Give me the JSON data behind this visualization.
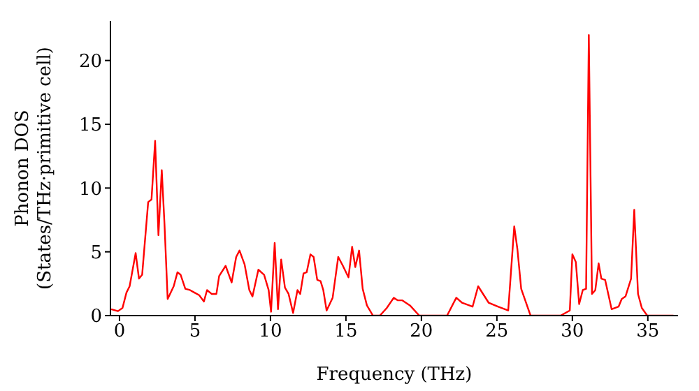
{
  "chart_data": {
    "type": "line",
    "xlabel": "Frequency (THz)",
    "ylabel": "Phonon DOS\n(States/THz·primitive cell)",
    "x": [
      -0.55,
      -0.1,
      0.2,
      0.46,
      0.67,
      1.07,
      1.29,
      1.5,
      1.9,
      2.12,
      2.36,
      2.58,
      2.8,
      2.98,
      3.19,
      3.59,
      3.84,
      4.05,
      4.36,
      4.67,
      4.97,
      5.28,
      5.59,
      5.8,
      6.1,
      6.42,
      6.6,
      7.03,
      7.43,
      7.73,
      7.95,
      8.29,
      8.6,
      8.81,
      9.2,
      9.58,
      9.88,
      10.04,
      10.28,
      10.5,
      10.71,
      10.96,
      11.2,
      11.5,
      11.79,
      11.97,
      12.19,
      12.4,
      12.65,
      12.86,
      13.1,
      13.32,
      13.5,
      13.72,
      14.12,
      14.49,
      14.8,
      15.17,
      15.41,
      15.62,
      15.87,
      16.11,
      16.39,
      16.79,
      17.25,
      17.71,
      18.17,
      18.42,
      18.72,
      19.24,
      19.86,
      21.7,
      22.31,
      22.7,
      23.39,
      23.76,
      24.46,
      25.07,
      25.75,
      26.15,
      26.36,
      26.61,
      27.23,
      29.22,
      29.83,
      30.0,
      30.23,
      30.45,
      30.69,
      30.91,
      31.09,
      31.3,
      31.52,
      31.74,
      31.92,
      32.17,
      32.6,
      33.06,
      33.27,
      33.52,
      33.89,
      34.1,
      34.35,
      34.6,
      34.96,
      36.7
    ],
    "series": [
      {
        "color": "#ff0000",
        "values": [
          0.5,
          0.35,
          0.6,
          1.8,
          2.3,
          4.9,
          2.9,
          3.2,
          8.9,
          9.1,
          13.7,
          6.3,
          11.4,
          7.2,
          1.3,
          2.3,
          3.4,
          3.2,
          2.1,
          2.0,
          1.8,
          1.6,
          1.1,
          2.0,
          1.7,
          1.7,
          3.1,
          3.9,
          2.6,
          4.6,
          5.1,
          4.0,
          2.0,
          1.5,
          3.6,
          3.2,
          2.0,
          0.3,
          5.7,
          0.5,
          4.4,
          2.2,
          1.7,
          0.2,
          2.0,
          1.7,
          3.3,
          3.4,
          4.8,
          4.6,
          2.8,
          2.7,
          2.0,
          0.4,
          1.4,
          4.6,
          3.9,
          3.0,
          5.4,
          3.8,
          5.1,
          2.1,
          0.8,
          0,
          0,
          0.6,
          1.4,
          1.2,
          1.2,
          0.8,
          0,
          0,
          1.4,
          1.0,
          0.7,
          2.3,
          1.0,
          0.7,
          0.4,
          7.0,
          5.2,
          2.1,
          0,
          0,
          0.4,
          4.8,
          4.2,
          0.9,
          2.0,
          2.1,
          22.0,
          1.7,
          2.0,
          4.1,
          2.9,
          2.8,
          0.5,
          0.7,
          1.3,
          1.5,
          2.9,
          8.3,
          1.7,
          0.6,
          0,
          0
        ]
      }
    ],
    "xlim": [
      -0.6,
      37
    ],
    "ylim": [
      0,
      23.1
    ],
    "xticks": [
      0,
      5,
      10,
      15,
      20,
      25,
      30,
      35
    ],
    "yticks": [
      0,
      5,
      10,
      15,
      20
    ],
    "grid": false,
    "legend": false,
    "marker": "none",
    "line_style": "solid"
  }
}
